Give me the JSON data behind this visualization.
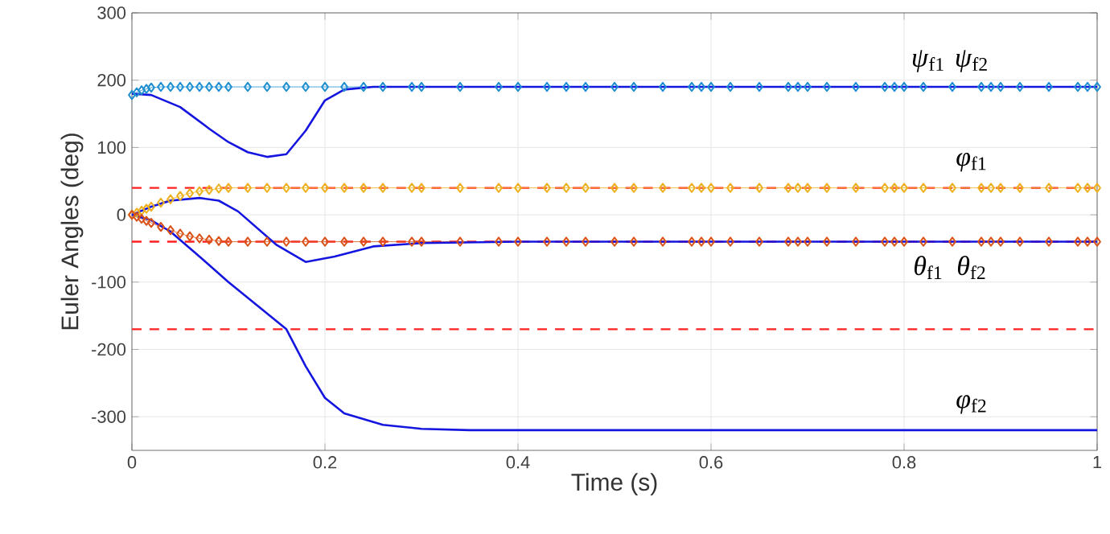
{
  "chart_data": {
    "type": "line",
    "xlabel": "Time (s)",
    "ylabel": "Euler Angles (deg)",
    "xlim": [
      0,
      1
    ],
    "ylim": [
      -350,
      300
    ],
    "xticks": [
      0,
      0.2,
      0.4,
      0.6,
      0.8,
      1
    ],
    "yticks": [
      -300,
      -200,
      -100,
      0,
      100,
      200,
      300
    ],
    "grid": true,
    "series": [
      {
        "name": "*ψ*$_{f1}$",
        "color": "#1f8fd0",
        "marker": "diamond",
        "x": [
          0,
          0.005,
          0.01,
          0.015,
          0.02,
          0.03,
          0.04,
          0.05,
          0.06,
          0.07,
          0.08,
          0.09,
          0.1,
          0.12,
          0.14,
          0.16,
          0.18,
          0.2,
          0.22,
          0.24,
          0.26,
          0.29,
          0.3,
          0.34,
          0.38,
          0.4,
          0.43,
          0.45,
          0.47,
          0.5,
          0.52,
          0.55,
          0.58,
          0.59,
          0.6,
          0.62,
          0.65,
          0.68,
          0.69,
          0.7,
          0.72,
          0.75,
          0.78,
          0.79,
          0.8,
          0.82,
          0.85,
          0.88,
          0.89,
          0.9,
          0.92,
          0.95,
          0.98,
          0.99,
          1
        ],
        "values": [
          178,
          182,
          185,
          187,
          189,
          190,
          190,
          190,
          190,
          190,
          190,
          190,
          190,
          190,
          190,
          190,
          190,
          190,
          190,
          190,
          190,
          190,
          190,
          190,
          190,
          190,
          190,
          190,
          190,
          190,
          190,
          190,
          190,
          190,
          190,
          190,
          190,
          190,
          190,
          190,
          190,
          190,
          190,
          190,
          190,
          190,
          190,
          190,
          190,
          190,
          190,
          190,
          190,
          190,
          190
        ]
      },
      {
        "name": "*φ*$_{f1}$",
        "color": "#edb120",
        "marker": "diamond",
        "x": [
          0,
          0.005,
          0.01,
          0.015,
          0.02,
          0.03,
          0.04,
          0.05,
          0.06,
          0.07,
          0.08,
          0.09,
          0.1,
          0.12,
          0.14,
          0.16,
          0.18,
          0.2,
          0.22,
          0.24,
          0.26,
          0.29,
          0.3,
          0.34,
          0.38,
          0.4,
          0.43,
          0.45,
          0.47,
          0.5,
          0.52,
          0.55,
          0.58,
          0.59,
          0.6,
          0.62,
          0.65,
          0.68,
          0.69,
          0.7,
          0.72,
          0.75,
          0.78,
          0.79,
          0.8,
          0.82,
          0.85,
          0.88,
          0.89,
          0.9,
          0.92,
          0.95,
          0.98,
          0.99,
          1
        ],
        "values": [
          0,
          3,
          6,
          9,
          12,
          18,
          23,
          28,
          32,
          35,
          37,
          39,
          40,
          40,
          40,
          40,
          40,
          40,
          40,
          40,
          40,
          40,
          40,
          40,
          40,
          40,
          40,
          40,
          40,
          40,
          40,
          40,
          40,
          40,
          40,
          40,
          40,
          40,
          40,
          40,
          40,
          40,
          40,
          40,
          40,
          40,
          40,
          40,
          40,
          40,
          40,
          40,
          40,
          40,
          40
        ]
      },
      {
        "name": "*θ*$_{f1}$",
        "color": "#d95319",
        "marker": "diamond",
        "x": [
          0,
          0.005,
          0.01,
          0.015,
          0.02,
          0.03,
          0.04,
          0.05,
          0.06,
          0.07,
          0.08,
          0.09,
          0.1,
          0.12,
          0.14,
          0.16,
          0.18,
          0.2,
          0.22,
          0.24,
          0.26,
          0.29,
          0.3,
          0.34,
          0.38,
          0.4,
          0.43,
          0.45,
          0.47,
          0.5,
          0.52,
          0.55,
          0.58,
          0.59,
          0.6,
          0.62,
          0.65,
          0.68,
          0.69,
          0.7,
          0.72,
          0.75,
          0.78,
          0.79,
          0.8,
          0.82,
          0.85,
          0.88,
          0.89,
          0.9,
          0.92,
          0.95,
          0.98,
          0.99,
          1
        ],
        "values": [
          0,
          -3,
          -6,
          -9,
          -12,
          -18,
          -23,
          -28,
          -32,
          -35,
          -37,
          -39,
          -40,
          -40,
          -40,
          -40,
          -40,
          -40,
          -40,
          -40,
          -40,
          -40,
          -40,
          -40,
          -40,
          -40,
          -40,
          -40,
          -40,
          -40,
          -40,
          -40,
          -40,
          -40,
          -40,
          -40,
          -40,
          -40,
          -40,
          -40,
          -40,
          -40,
          -40,
          -40,
          -40,
          -40,
          -40,
          -40,
          -40,
          -40,
          -40,
          -40,
          -40,
          -40,
          -40
        ]
      },
      {
        "name": "*ψ*$_{f2}$",
        "color": "#1515e0",
        "marker": "none",
        "x": [
          0,
          0.02,
          0.05,
          0.08,
          0.1,
          0.12,
          0.14,
          0.16,
          0.18,
          0.2,
          0.22,
          0.25,
          0.3,
          0.5,
          1
        ],
        "values": [
          180,
          178,
          160,
          128,
          108,
          93,
          86,
          90,
          125,
          170,
          186,
          190,
          190,
          190,
          190
        ]
      },
      {
        "name": "*θ*$_{f2}$",
        "color": "#1515e0",
        "marker": "none",
        "x": [
          0,
          0.02,
          0.04,
          0.07,
          0.09,
          0.11,
          0.13,
          0.15,
          0.18,
          0.21,
          0.25,
          0.3,
          0.4,
          1
        ],
        "values": [
          0,
          12,
          21,
          25,
          21,
          5,
          -20,
          -45,
          -70,
          -62,
          -47,
          -42,
          -40,
          -40
        ]
      },
      {
        "name": "*φ*$_{f2}$",
        "color": "#1515e0",
        "marker": "none",
        "x": [
          0,
          0.02,
          0.04,
          0.07,
          0.1,
          0.13,
          0.16,
          0.18,
          0.2,
          0.22,
          0.26,
          0.3,
          0.35,
          0.5,
          1
        ],
        "values": [
          0,
          -8,
          -25,
          -62,
          -100,
          -135,
          -170,
          -225,
          -272,
          -295,
          -312,
          -318,
          -320,
          -320,
          -320
        ]
      }
    ],
    "ref_lines": [
      {
        "axis": "y",
        "value": 40,
        "color": "#ff2020",
        "line_style": "dashed"
      },
      {
        "axis": "y",
        "value": -40,
        "color": "#ff2020",
        "line_style": "dashed"
      },
      {
        "axis": "y",
        "value": -170,
        "color": "#ff2020",
        "line_style": "dashed"
      }
    ]
  }
}
